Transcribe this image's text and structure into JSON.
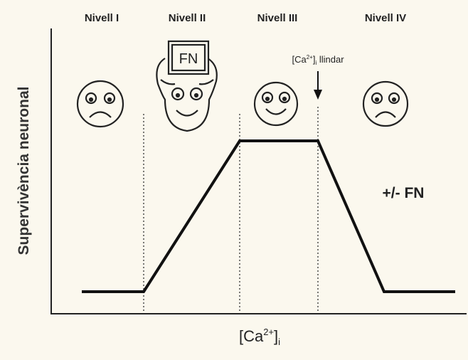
{
  "levels": [
    "Nivell I",
    "Nivell II",
    "Nivell III",
    "Nivell IV"
  ],
  "axis": {
    "y_label": "Supervivència neuronal",
    "x_label": {
      "base": "[Ca",
      "sup": "2+",
      "close": "]",
      "sub": "i"
    }
  },
  "annotations": {
    "threshold": {
      "base": "[Ca",
      "sup": "2+",
      "close": "]",
      "sub": "i",
      "text": " llindar"
    },
    "sign": "FN",
    "treatment": "+/- FN"
  }
}
